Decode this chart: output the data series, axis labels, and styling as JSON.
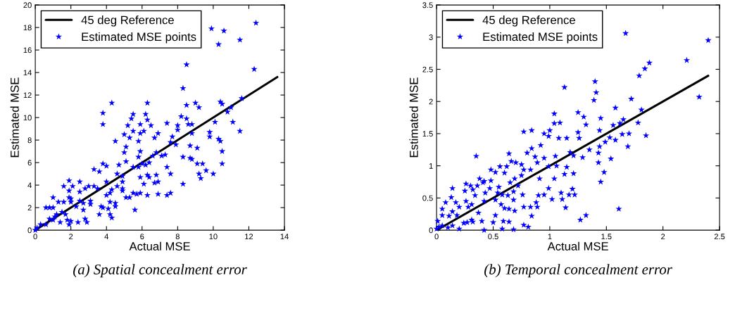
{
  "chart_data": [
    {
      "type": "scatter",
      "xlabel": "Actual MSE",
      "ylabel": "Estimated MSE",
      "xlim": [
        0,
        14
      ],
      "ylim": [
        0,
        20
      ],
      "xticks": [
        0,
        2,
        4,
        6,
        8,
        10,
        12,
        14
      ],
      "yticks": [
        0,
        2,
        4,
        6,
        8,
        10,
        12,
        14,
        16,
        18,
        20
      ],
      "legend": "top left",
      "annotations": [
        "(a) Spatial concealment error"
      ],
      "series": [
        {
          "name": "45 deg Reference",
          "type": "line",
          "color": "#000000",
          "x": [
            0,
            13.6
          ],
          "values": [
            0,
            13.6
          ]
        },
        {
          "name": "Estimated MSE points",
          "color": "#0000ff",
          "marker": "star",
          "x": [
            9.9,
            10.3,
            10.6,
            11.5,
            12.4,
            12.3,
            8.5,
            8.3,
            8.5,
            9.0,
            9.2,
            8.2,
            8.5,
            10.4,
            10.5,
            11.6,
            11.0,
            10.8,
            11.1,
            10.1,
            11.5,
            9.8,
            9.8,
            10.3,
            10.4,
            10.5,
            10.5,
            10.0,
            9.6,
            9.1,
            9.1,
            9.4,
            9.2,
            9.3,
            8.7,
            8.7,
            8.8,
            8.3,
            8.3,
            7.6,
            7.4,
            7.6,
            7.4,
            7.4,
            7.7,
            8.0,
            8.0,
            8.6,
            8.8,
            8.8,
            7.6,
            7.9,
            7.3,
            7.1,
            6.8,
            6.9,
            6.7,
            6.5,
            6.3,
            6.2,
            6.3,
            6.1,
            5.9,
            5.9,
            5.8,
            5.9,
            5.8,
            6.0,
            6.2,
            6.4,
            6.6,
            5.8,
            5.5,
            5.9,
            6.1,
            6.3,
            6.4,
            6.8,
            6.7,
            6.9,
            6.9,
            6.3,
            5.9,
            5.7,
            5.5,
            5.6,
            5.3,
            5.1,
            4.9,
            4.9,
            4.9,
            4.9,
            4.7,
            4.6,
            5.1,
            5.0,
            5.1,
            5.2,
            5.0,
            5.3,
            5.4,
            5.5,
            5.5,
            4.3,
            4.5,
            3.8,
            3.8,
            3.8,
            4.0,
            4.0,
            4.2,
            4.3,
            4.2,
            4.5,
            4.5,
            4.2,
            4.3,
            3.6,
            3.3,
            3.3,
            3.5,
            3.7,
            3.6,
            3.8,
            4.1,
            3.0,
            2.8,
            3.1,
            3.1,
            2.7,
            2.7,
            2.8,
            2.9,
            2.5,
            2.5,
            2.3,
            2.4,
            2.1,
            1.9,
            1.6,
            1.9,
            2.0,
            2.0,
            1.9,
            2.0,
            1.9,
            1.8,
            1.7,
            1.3,
            1.6,
            1.0,
            0.6,
            0.8,
            1.0,
            1.0,
            1.2,
            1.4,
            0.8,
            0.6,
            0.3,
            0.1,
            0,
            1.5,
            1.1,
            2.5,
            4.6,
            4.0
          ],
          "values": [
            17.9,
            16.5,
            17.7,
            16.9,
            18.4,
            14.3,
            14.7,
            12.6,
            11.1,
            11.3,
            10.9,
            10.1,
            9.9,
            11.4,
            11.2,
            11.7,
            10.9,
            10.5,
            9.6,
            9.6,
            8.8,
            8.7,
            8.3,
            8.1,
            7.9,
            7.0,
            5.9,
            5.0,
            5.3,
            7.3,
            5.9,
            5.9,
            5.0,
            4.6,
            7.5,
            6.4,
            6.3,
            4.1,
            6.5,
            3.3,
            3.1,
            5.0,
            5.6,
            9.5,
            8.3,
            8.9,
            9.3,
            9.4,
            9.4,
            8.6,
            7.8,
            7.6,
            6.7,
            6.6,
            6.9,
            8.6,
            8.2,
            9.3,
            9.8,
            10.3,
            11.3,
            8.8,
            9.4,
            8.6,
            7.9,
            7.0,
            6.5,
            5.9,
            5.8,
            6.0,
            6.6,
            5.6,
            5.6,
            4.7,
            4.1,
            4.9,
            4.7,
            4.9,
            4.2,
            4.3,
            3.2,
            3.1,
            3.3,
            3.2,
            3.3,
            1.8,
            2.9,
            2.9,
            3.7,
            3.5,
            4.3,
            4.8,
            5.8,
            5.0,
            6.1,
            6.9,
            7.4,
            9.3,
            8.5,
            8.2,
            9.9,
            10.3,
            8.8,
            11.3,
            7.9,
            10.4,
            9.4,
            5.9,
            5.7,
            4.3,
            3.3,
            3.6,
            2.5,
            2.4,
            2.1,
            1.4,
            1.1,
            5.2,
            5.4,
            3.9,
            3.7,
            2.1,
            1.4,
            2.0,
            1.9,
            3.9,
            3.7,
            2.6,
            2.3,
            2.4,
            1.8,
            1.0,
            0.7,
            4.3,
            3.4,
            2.1,
            0.7,
            3.9,
            4.4,
            3.9,
            3.5,
            2.8,
            2.5,
            2.9,
            0.8,
            0.5,
            0.9,
            1.4,
            2.5,
            2.5,
            2.9,
            2.0,
            2.0,
            2.0,
            0.9,
            1.4,
            0.7,
            1.0,
            0.5,
            0.5,
            0.2,
            0,
            1.6,
            1.2,
            2.6,
            3.9,
            3.1
          ]
        }
      ]
    },
    {
      "type": "scatter",
      "xlabel": "Actual MSE",
      "ylabel": "Estimated MSE",
      "xlim": [
        0,
        2.5
      ],
      "ylim": [
        0,
        3.5
      ],
      "xticks": [
        0,
        0.5,
        1,
        1.5,
        2,
        2.5
      ],
      "yticks": [
        0,
        0.5,
        1,
        1.5,
        2,
        2.5,
        3,
        3.5
      ],
      "legend": "top left",
      "annotations": [
        "(b) Temporal concealment error"
      ],
      "series": [
        {
          "name": "45 deg Reference",
          "type": "line",
          "color": "#000000",
          "x": [
            0,
            2.4
          ],
          "values": [
            0,
            2.4
          ]
        },
        {
          "name": "Estimated MSE points",
          "color": "#0000ff",
          "marker": "star",
          "x": [
            1.67,
            2.4,
            2.21,
            1.88,
            1.84,
            1.79,
            2.32,
            1.4,
            1.41,
            1.39,
            1.13,
            1.72,
            1.81,
            1.58,
            1.78,
            1.65,
            1.62,
            1.56,
            1.45,
            1.44,
            1.64,
            1.7,
            1.85,
            1.69,
            1.58,
            1.53,
            1.49,
            1.44,
            1.43,
            1.43,
            1.54,
            1.48,
            1.45,
            1.61,
            1.35,
            1.29,
            1.32,
            1.3,
            1.25,
            1.25,
            1.26,
            1.18,
            1.21,
            1.15,
            1.08,
            1.09,
            1.04,
            1.04,
            1.05,
            1.06,
            1.0,
            0.99,
            0.95,
            0.92,
            0.84,
            0.77,
            0.84,
            0.8,
            0.64,
            0.87,
            0.95,
            0.99,
            0.89,
            0.91,
            1.04,
            0.99,
            1.02,
            1.1,
            1.11,
            1.14,
            1.17,
            1.2,
            1.22,
            1.21,
            1.13,
            1.15,
            1.27,
            1.32,
            0.95,
            0.9,
            0.88,
            0.89,
            0.84,
            0.81,
            0.77,
            0.83,
            0.77,
            0.76,
            0.75,
            0.77,
            0.83,
            0.7,
            0.75,
            0.66,
            0.62,
            0.56,
            0.6,
            0.65,
            0.69,
            0.72,
            0.68,
            0.68,
            0.69,
            0.64,
            0.6,
            0.57,
            0.63,
            0.58,
            0.55,
            0.52,
            0.48,
            0.52,
            0.52,
            0.5,
            0.59,
            0.64,
            0.68,
            0.58,
            0.42,
            0.48,
            0.47,
            0.43,
            0.42,
            0.41,
            0.38,
            0.35,
            0.36,
            0.34,
            0.32,
            0.31,
            0.37,
            0.4,
            0.32,
            0.27,
            0.26,
            0.28,
            0.25,
            0.2,
            0.17,
            0.14,
            0.18,
            0.14,
            0.13,
            0.08,
            0.05,
            0.05,
            0.11,
            0.01,
            0.02,
            0.0,
            0.05,
            0.1,
            0.14,
            0.2,
            0.24,
            0.42,
            0.3,
            0.54,
            0.31,
            0.26
          ],
          "values": [
            3.06,
            2.95,
            2.64,
            2.6,
            2.51,
            2.4,
            2.07,
            2.31,
            2.14,
            2.02,
            2.22,
            2.04,
            1.87,
            1.9,
            1.67,
            1.72,
            1.66,
            1.63,
            1.74,
            1.55,
            1.49,
            1.5,
            1.47,
            1.3,
            1.4,
            1.44,
            1.37,
            1.3,
            1.2,
            1.05,
            1.11,
            0.9,
            0.75,
            0.33,
            1.25,
            1.13,
            1.64,
            1.76,
            1.83,
            1.52,
            1.43,
            1.21,
            1.16,
            1.43,
            1.43,
            1.67,
            1.66,
            1.81,
            1.15,
            1.0,
            1.55,
            1.46,
            1.5,
            1.32,
            1.55,
            1.53,
            1.27,
            1.2,
            1.19,
            1.14,
            1.12,
            0.99,
            1.05,
            0.8,
            0.8,
            0.65,
            0.48,
            0.58,
            0.48,
            0.35,
            0.55,
            0.64,
            0.55,
            0.88,
            0.87,
            0.98,
            0.16,
            0.23,
            0.55,
            0.54,
            0.43,
            0.36,
            0.22,
            0.05,
            0.08,
            0.36,
            0.36,
            0.55,
            0.85,
            0.94,
            0.94,
            1.05,
            1.02,
            1.07,
            0.99,
            0.99,
            0.89,
            0.74,
            0.8,
            0.69,
            0.6,
            0.47,
            0.3,
            0.33,
            0.34,
            0.4,
            0.54,
            0.55,
            0.67,
            0.9,
            0.94,
            0.47,
            0.23,
            0.12,
            0.14,
            0.13,
            0.01,
            0.02,
            0.0,
            0.77,
            0.65,
            0.58,
            0.45,
            0.74,
            0.8,
            1.15,
            0.69,
            0.54,
            0.63,
            0.4,
            0.27,
            0.14,
            0.13,
            0.12,
            0.45,
            0.36,
            0.61,
            0.36,
            0.43,
            0.29,
            0.23,
            0.65,
            0.51,
            0.43,
            0.33,
            0.23,
            0.22,
            0.14,
            0.05,
            0.02,
            0.07,
            0.04,
            0.07,
            0.02,
            0.11,
            0.76,
            0.69,
            0.58,
            0.16,
            0.72
          ]
        }
      ]
    }
  ]
}
